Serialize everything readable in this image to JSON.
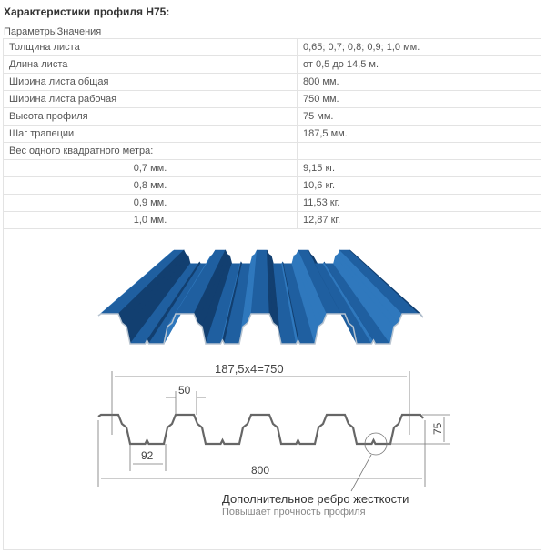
{
  "title": "Характеристики профиля Н75:",
  "caption": "ПараметрыЗначения",
  "rows": [
    {
      "param": "Толщина листа",
      "value": "0,65; 0,7; 0,8; 0,9; 1,0 мм."
    },
    {
      "param": "Длина листа",
      "value": "от 0,5 до 14,5 м."
    },
    {
      "param": "Ширина листа общая",
      "value": "800 мм."
    },
    {
      "param": "Ширина листа рабочая",
      "value": "750 мм."
    },
    {
      "param": "Высота профиля",
      "value": "75 мм."
    },
    {
      "param": "Шаг трапеции",
      "value": "187,5 мм."
    },
    {
      "param": "Вес одного квадратного метра:",
      "value": ""
    }
  ],
  "weights": [
    {
      "thickness": "0,7 мм.",
      "weight": "9,15 кг."
    },
    {
      "thickness": "0,8 мм.",
      "weight": "10,6 кг."
    },
    {
      "thickness": "0,9 мм.",
      "weight": "11,53 кг."
    },
    {
      "thickness": "1,0 мм.",
      "weight": "12,87 кг."
    }
  ],
  "drawing": {
    "dim_pitch": "187,5x4=750",
    "dim_top": "50",
    "dim_bottom": "92",
    "dim_total": "800",
    "dim_height": "75",
    "note_title": "Дополнительное ребро жесткости",
    "note_sub": "Повышает прочность профиля"
  },
  "colors": {
    "sheet": "#1f5fa0",
    "sheet_dark": "#123f70",
    "sheet_light": "#2f78bd"
  }
}
